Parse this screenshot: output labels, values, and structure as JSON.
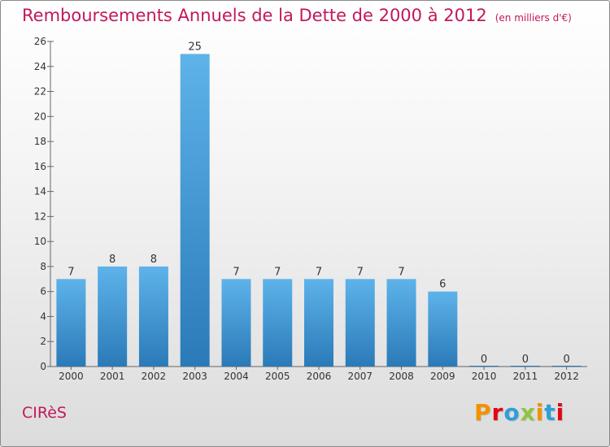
{
  "header": {
    "title": "Remboursements Annuels de la Dette de 2000 à 2012",
    "unit": "(en milliers d'€)"
  },
  "footer": {
    "commune": "CIRèS",
    "brand": "Proxiti",
    "brand_colors": [
      "#f39200",
      "#e30613",
      "#2e9fd8",
      "#8dc63f",
      "#f39200",
      "#2e9fd8",
      "#e30613"
    ]
  },
  "colors": {
    "title": "#c2185b",
    "bar_top": "#5eb3ea",
    "bar_bottom": "#2a7ab8",
    "grid": "#b0b0b0",
    "text": "#333333"
  },
  "chart_data": {
    "type": "bar",
    "categories": [
      "2000",
      "2001",
      "2002",
      "2003",
      "2004",
      "2005",
      "2006",
      "2007",
      "2008",
      "2009",
      "2010",
      "2011",
      "2012"
    ],
    "values": [
      7,
      8,
      8,
      25,
      7,
      7,
      7,
      7,
      7,
      6,
      0,
      0,
      0
    ],
    "data_labels": [
      "7",
      "8",
      "8",
      "25",
      "7",
      "7",
      "7",
      "7",
      "7",
      "6",
      "0",
      "0",
      "0"
    ],
    "y_ticks": [
      "0",
      "2",
      "4",
      "6",
      "8",
      "10",
      "12",
      "14",
      "16",
      "18",
      "20",
      "22",
      "24",
      "26"
    ],
    "ylim": [
      0,
      26
    ],
    "grid": false
  }
}
